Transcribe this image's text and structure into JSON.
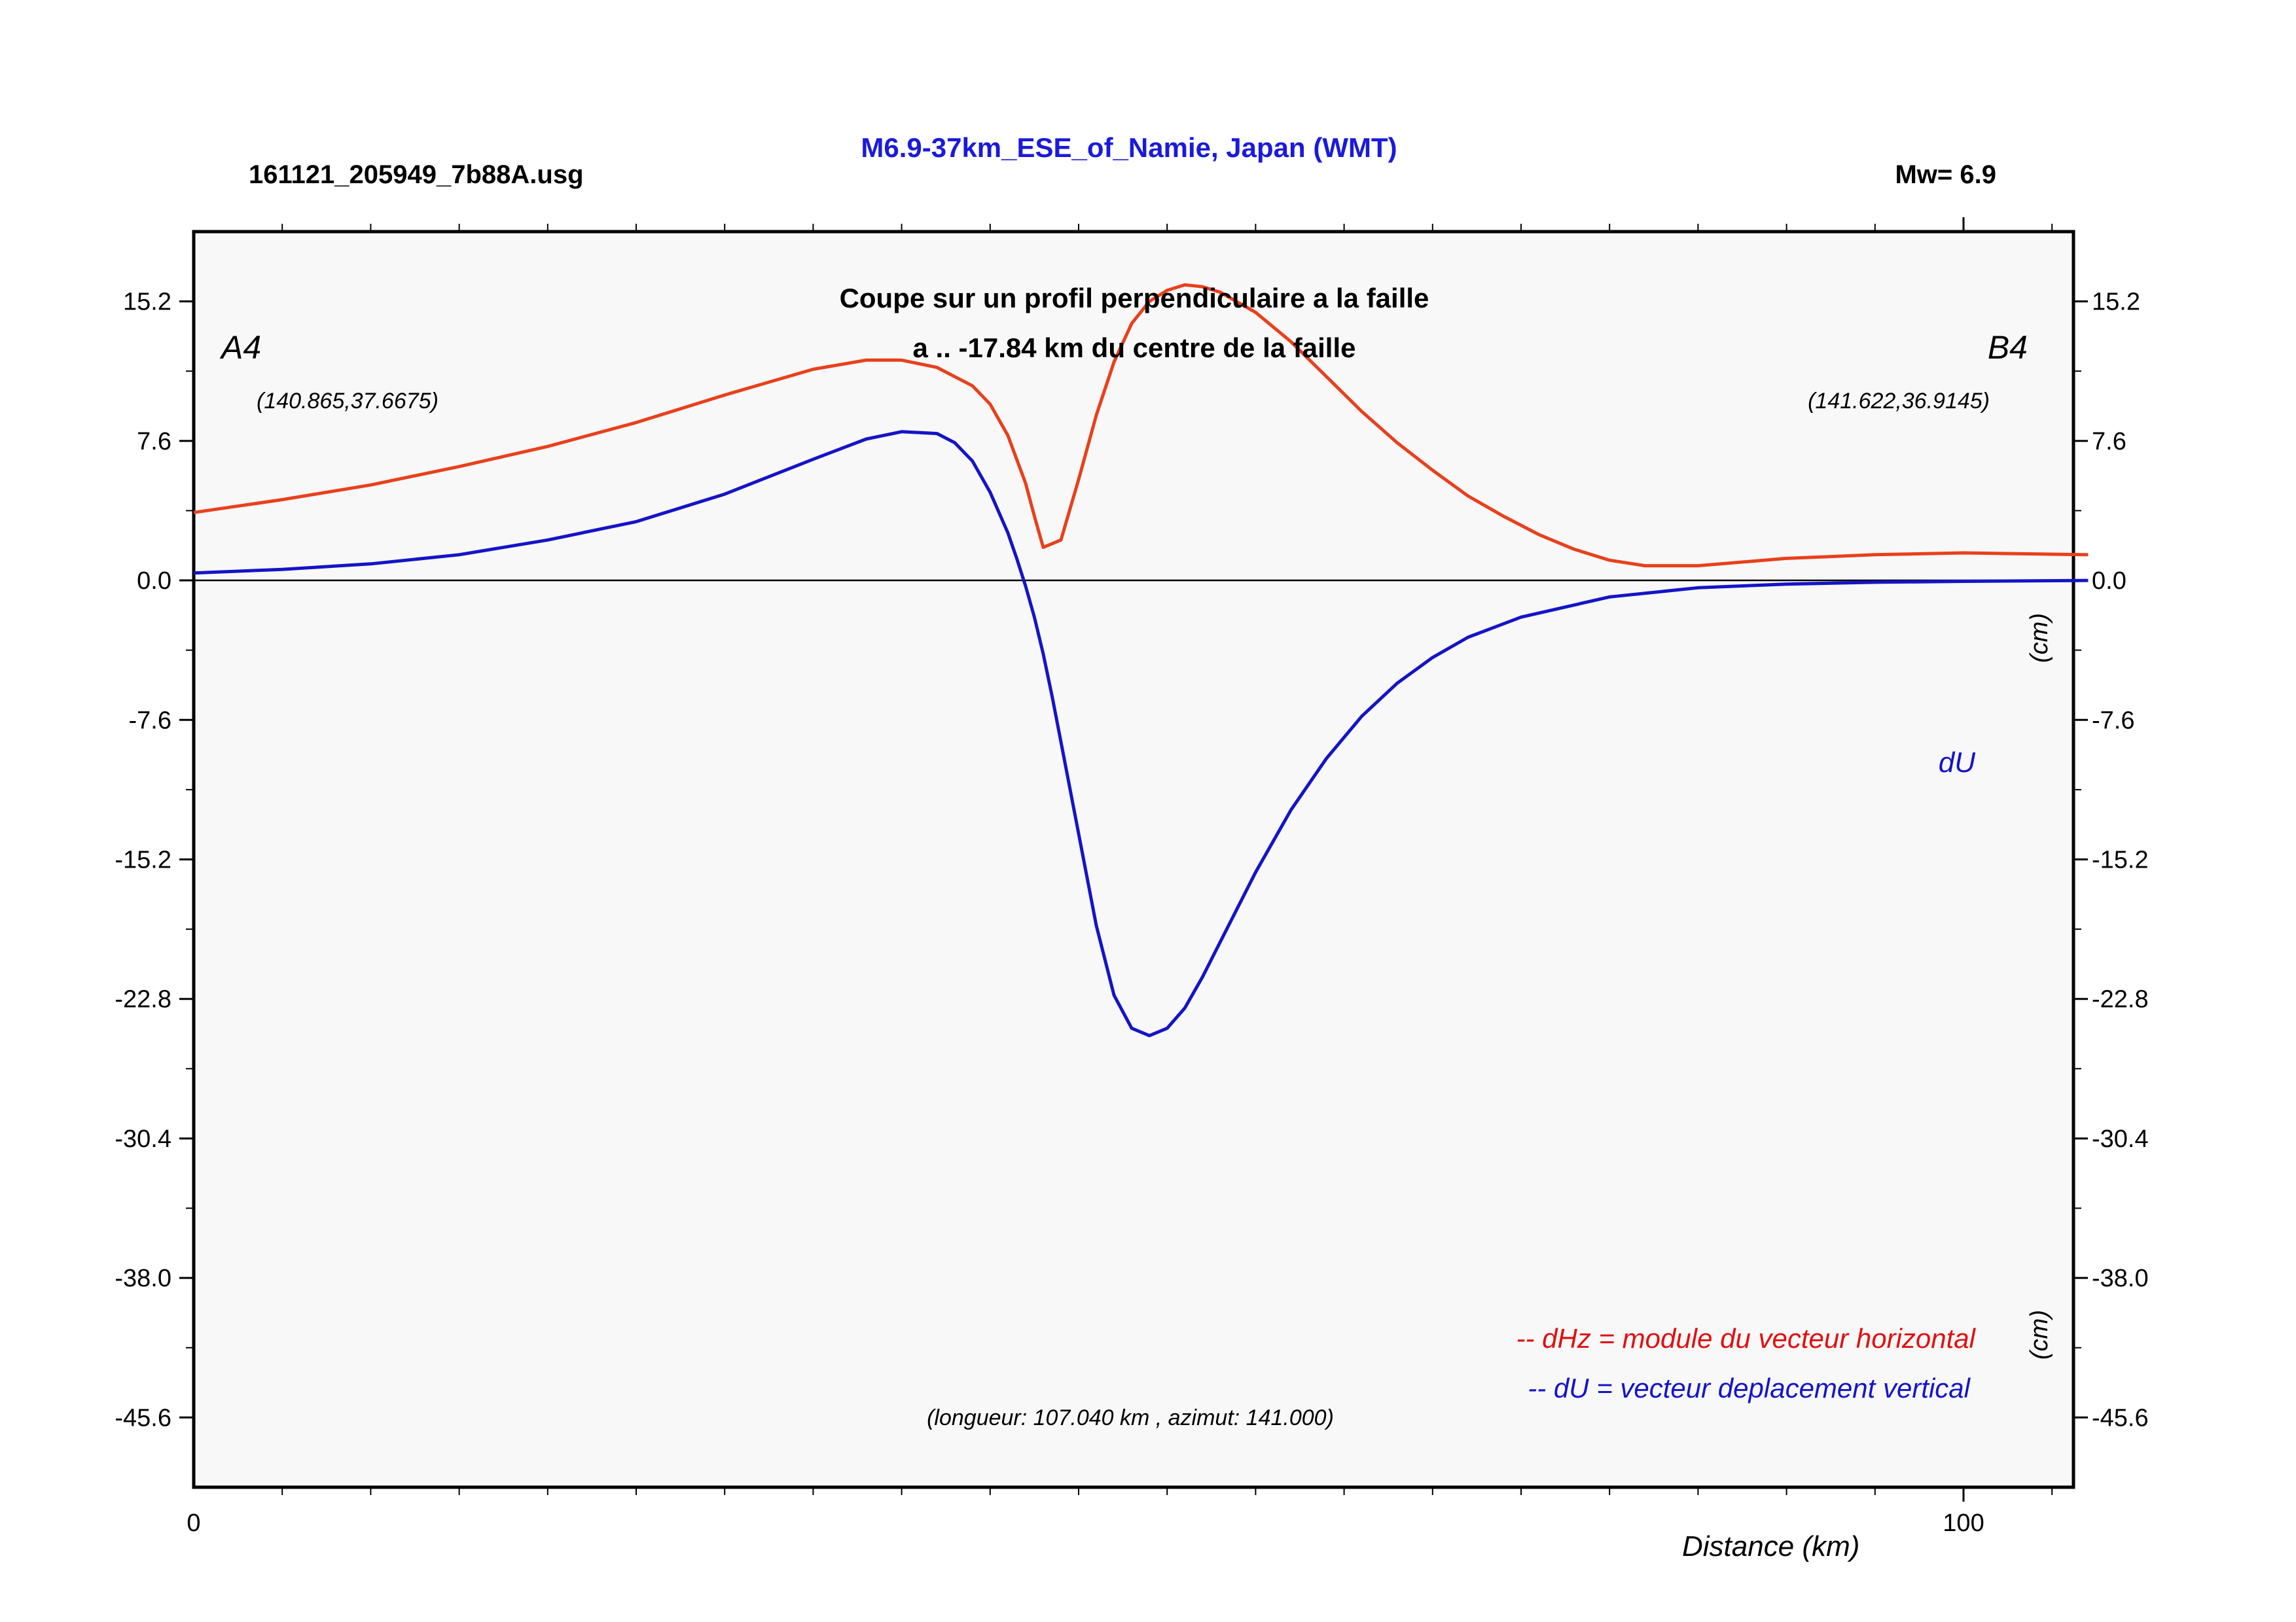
{
  "header": {
    "file": "161121_205949_7b88A.usg",
    "title": "M6.9-37km_ESE_of_Namie, Japan (WMT)",
    "mw": "Mw= 6.9"
  },
  "annotations": {
    "subtitle_line1": "Coupe sur un profil perpendiculaire a la faille",
    "subtitle_line2": "a .. -17.84 km du centre de la faille",
    "point_a": "A4",
    "point_a_coords": "(140.865,37.6675)",
    "point_b": "B4",
    "point_b_coords": "(141.622,36.9145)",
    "unit_upper": "(cm)",
    "unit_lower": "(cm)",
    "du_label": "dU",
    "legend_dhz": "-- dHz = module du vecteur horizontal",
    "legend_du": "-- dU =  vecteur deplacement vertical",
    "length_azimuth": "(longueur: 107.040 km , azimut: 141.000)"
  },
  "colors": {
    "title": "#1a1adc",
    "dhz": "#e8401c",
    "du": "#1414c8",
    "legend_dhz": "#e01010",
    "plot_bg": "#f8f8f8"
  },
  "chart_data": {
    "type": "line",
    "title": "M6.9-37km_ESE_of_Namie, Japan (WMT)",
    "xlabel": "Distance (km)",
    "ylabel": "(cm)",
    "xlim": [
      0,
      107.04
    ],
    "ylim": [
      -49.4,
      19.0
    ],
    "x_ticks": [
      0,
      100
    ],
    "y_ticks": [
      15.2,
      7.6,
      0.0,
      -7.6,
      -15.2,
      -22.8,
      -30.4,
      -38.0,
      -45.6
    ],
    "y_tick_labels": [
      "15.2",
      "7.6",
      "0.0",
      "-7.6",
      "-15.2",
      "-22.8",
      "-30.4",
      "-38.0",
      "-45.6"
    ],
    "grid": false,
    "series": [
      {
        "name": "dHz",
        "color": "#e8401c",
        "x": [
          0,
          5,
          10,
          15,
          20,
          25,
          30,
          35,
          38,
          40,
          42,
          44,
          45,
          46,
          47,
          47.5,
          48,
          49,
          50,
          51,
          52,
          53,
          54,
          55,
          56,
          57,
          58,
          60,
          62,
          64,
          66,
          68,
          70,
          72,
          74,
          76,
          78,
          80,
          82,
          85,
          90,
          95,
          100,
          107.04
        ],
        "y": [
          3.7,
          4.4,
          5.2,
          6.2,
          7.3,
          8.6,
          10.1,
          11.5,
          12.0,
          12.0,
          11.6,
          10.6,
          9.6,
          7.9,
          5.3,
          3.5,
          1.8,
          2.2,
          5.5,
          9.0,
          11.9,
          14.0,
          15.2,
          15.8,
          16.1,
          16.0,
          15.7,
          14.6,
          13.0,
          11.1,
          9.2,
          7.5,
          6.0,
          4.6,
          3.5,
          2.5,
          1.7,
          1.1,
          0.8,
          0.8,
          1.2,
          1.4,
          1.5,
          1.4
        ]
      },
      {
        "name": "dU",
        "color": "#1414c8",
        "x": [
          0,
          5,
          10,
          15,
          20,
          25,
          30,
          35,
          38,
          40,
          42,
          43,
          44,
          45,
          46,
          46.5,
          47,
          47.5,
          48,
          48.5,
          49,
          50,
          51,
          52,
          53,
          54,
          55,
          56,
          57,
          58,
          60,
          62,
          64,
          66,
          68,
          70,
          72,
          75,
          80,
          85,
          90,
          95,
          100,
          107.04
        ],
        "y": [
          0.4,
          0.6,
          0.9,
          1.4,
          2.2,
          3.2,
          4.7,
          6.6,
          7.7,
          8.1,
          8.0,
          7.5,
          6.5,
          4.8,
          2.6,
          1.2,
          -0.3,
          -2.0,
          -4.0,
          -6.3,
          -8.8,
          -13.8,
          -18.8,
          -22.6,
          -24.4,
          -24.8,
          -24.4,
          -23.3,
          -21.6,
          -19.7,
          -15.9,
          -12.5,
          -9.7,
          -7.4,
          -5.6,
          -4.2,
          -3.1,
          -2.0,
          -0.9,
          -0.4,
          -0.2,
          -0.1,
          -0.05,
          0.0
        ]
      }
    ]
  }
}
